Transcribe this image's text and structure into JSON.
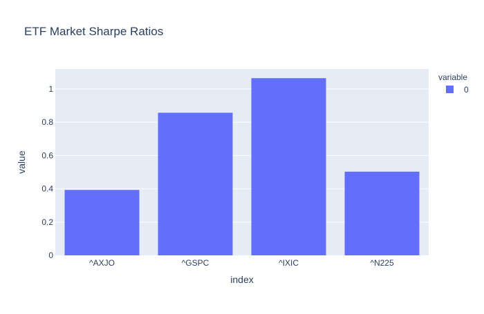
{
  "chart_data": {
    "type": "bar",
    "title": "ETF Market Sharpe Ratios",
    "xlabel": "index",
    "ylabel": "value",
    "categories": [
      "^AXJO",
      "^GSPC",
      "^IXIC",
      "^N225"
    ],
    "series": [
      {
        "name": "0",
        "values": [
          0.393,
          0.857,
          1.065,
          0.503
        ]
      }
    ],
    "ylim": [
      0,
      1.12
    ],
    "yticks": [
      0,
      0.2,
      0.4,
      0.6,
      0.8,
      1
    ],
    "ytick_labels": [
      "0",
      "0.2",
      "0.4",
      "0.6",
      "0.8",
      "1"
    ],
    "grid": true,
    "legend": {
      "title": "variable",
      "placement": "top-right"
    },
    "colors": {
      "bar": "#636efa",
      "plot_bg": "#e5ecf6",
      "grid": "#ffffff",
      "text": "#2a3f5f",
      "title_text": "#2a3f5f"
    }
  }
}
